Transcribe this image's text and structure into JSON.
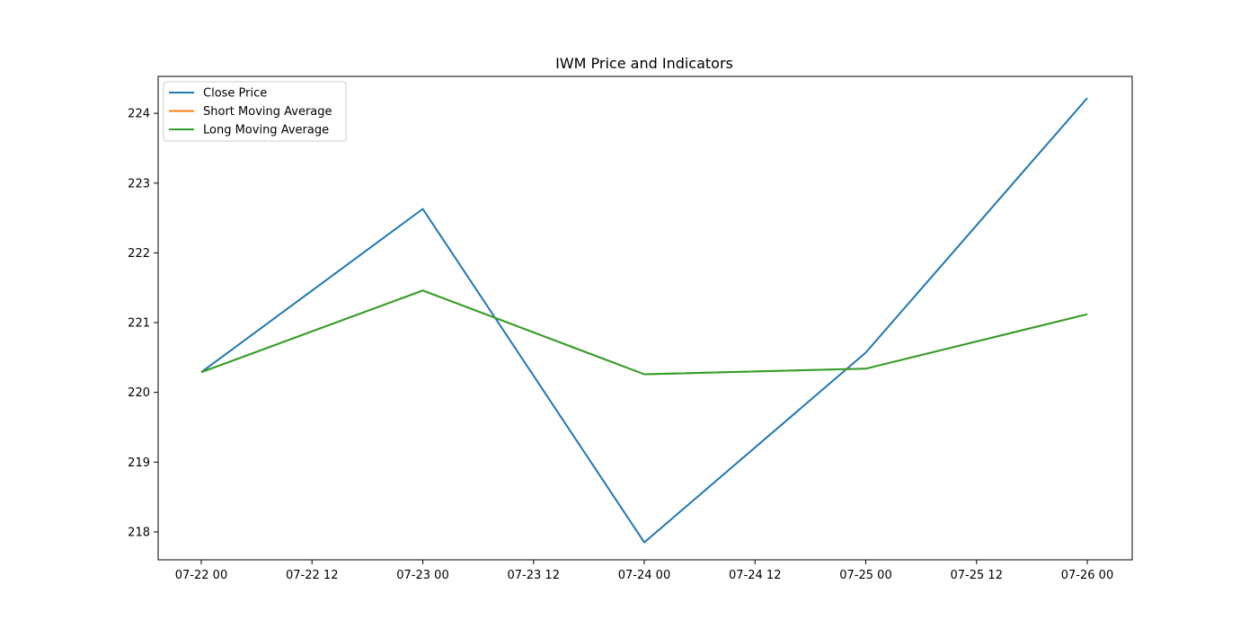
{
  "chart_data": {
    "type": "line",
    "title": "IWM Price and Indicators",
    "xlabel": "",
    "ylabel": "",
    "x": [
      "07-22 00",
      "07-23 00",
      "07-24 00",
      "07-25 00",
      "07-26 00"
    ],
    "x_ticks": [
      "07-22 00",
      "07-22 12",
      "07-23 00",
      "07-23 12",
      "07-24 00",
      "07-24 12",
      "07-25 00",
      "07-25 12",
      "07-26 00"
    ],
    "y_ticks": [
      218,
      219,
      220,
      221,
      222,
      223,
      224
    ],
    "xlim": [
      "07-21 19",
      "07-26 05"
    ],
    "ylim": [
      217.6,
      224.53
    ],
    "grid": false,
    "legend_position": "top-left",
    "series": [
      {
        "name": "Close Price",
        "color": "#1f77b4",
        "values": [
          220.29,
          222.63,
          217.85,
          220.57,
          224.22
        ]
      },
      {
        "name": "Short Moving Average",
        "color": "#ff7f0e",
        "values": [
          220.29,
          221.46,
          220.26,
          220.34,
          221.12
        ]
      },
      {
        "name": "Long Moving Average",
        "color": "#2ca02c",
        "values": [
          220.29,
          221.46,
          220.26,
          220.34,
          221.12
        ]
      }
    ]
  }
}
